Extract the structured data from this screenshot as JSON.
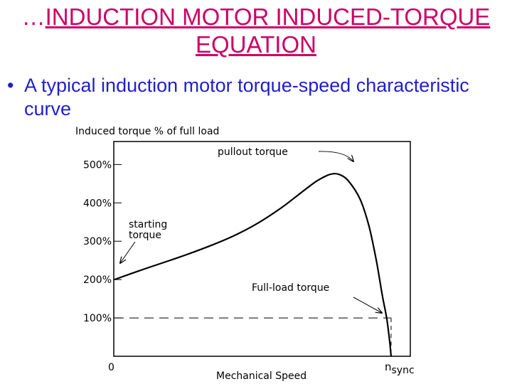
{
  "slide": {
    "title_prefix": "…",
    "title": "INDUCTION MOTOR INDUCED-TORQUE EQUATION",
    "bullet": "A typical induction motor torque-speed characteristic curve"
  },
  "colors": {
    "title": "#cc0066",
    "bullet": "#1f1fcc",
    "curve": "#000000"
  },
  "chart_data": {
    "type": "line",
    "title": "",
    "ylabel": "Induced torque % of full load",
    "xlabel": "Mechanical Speed",
    "ylim": [
      0,
      560
    ],
    "xlim": [
      0,
      100
    ],
    "y_ticks": [
      {
        "value": 100,
        "label": "100%"
      },
      {
        "value": 200,
        "label": "200%"
      },
      {
        "value": 300,
        "label": "300%"
      },
      {
        "value": 400,
        "label": "400%"
      },
      {
        "value": 500,
        "label": "500%"
      }
    ],
    "x_tick_labels": {
      "origin": "0",
      "sync_main": "n",
      "sync_sub": "sync"
    },
    "sync_speed": 93.5,
    "full_load_torque": 100,
    "series": [
      {
        "values": [
          [
            0,
            200
          ],
          [
            8,
            222
          ],
          [
            16,
            243
          ],
          [
            24,
            264
          ],
          [
            32,
            287
          ],
          [
            40,
            313
          ],
          [
            48,
            345
          ],
          [
            56,
            385
          ],
          [
            62,
            420
          ],
          [
            68,
            455
          ],
          [
            72,
            472
          ],
          [
            74,
            476
          ],
          [
            76,
            474
          ],
          [
            79,
            458
          ],
          [
            83,
            410
          ],
          [
            86,
            340
          ],
          [
            88.5,
            250
          ],
          [
            90.5,
            160
          ],
          [
            92,
            100
          ],
          [
            93,
            40
          ],
          [
            93.5,
            0
          ]
        ]
      }
    ],
    "annotations": {
      "pullout": "pullout torque",
      "starting_1": "starting",
      "starting_2": "torque",
      "full_load": "Full-load torque"
    }
  }
}
